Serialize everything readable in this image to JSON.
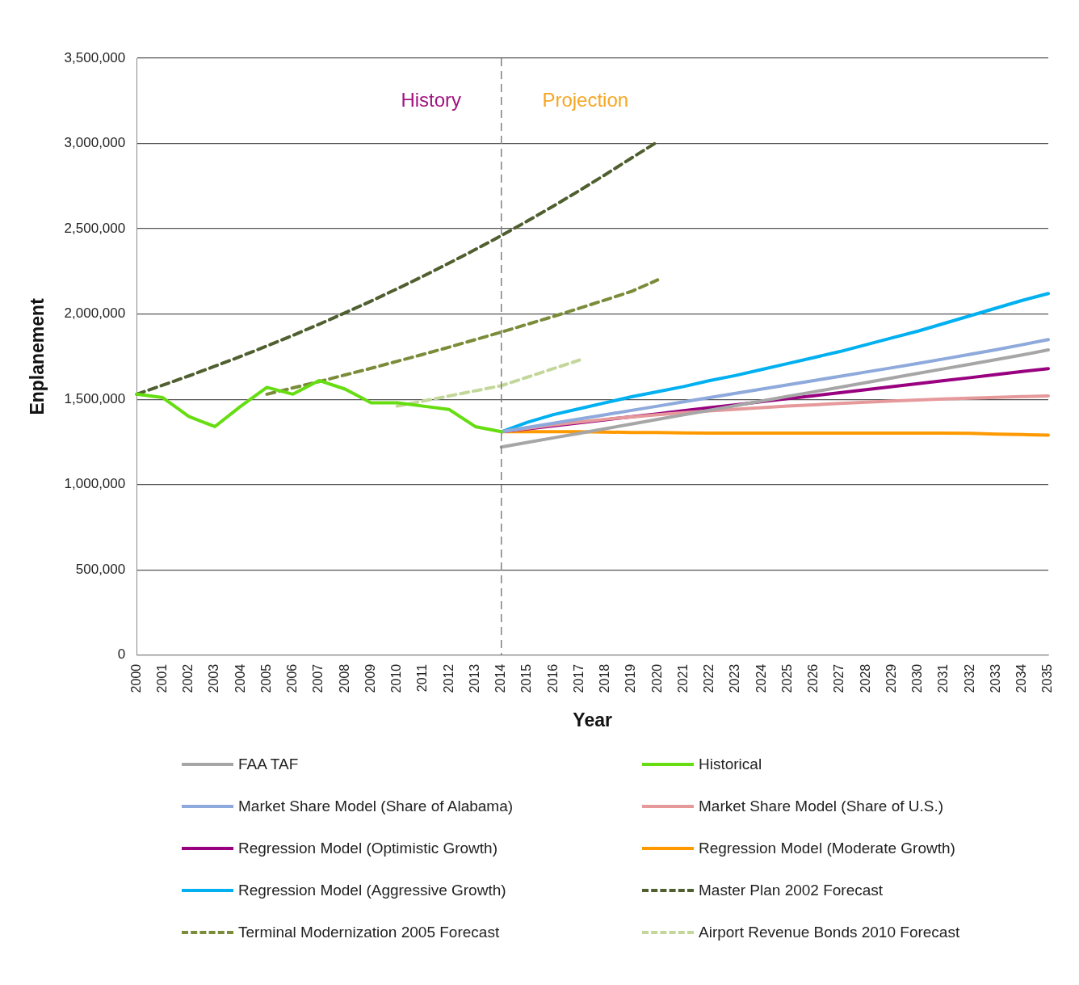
{
  "chart_data": {
    "type": "line",
    "xlabel": "Year",
    "ylabel": "Enplanement",
    "categories": [
      "2000",
      "2001",
      "2002",
      "2003",
      "2004",
      "2005",
      "2006",
      "2007",
      "2008",
      "2009",
      "2010",
      "2011",
      "2012",
      "2013",
      "2014",
      "2015",
      "2016",
      "2017",
      "2018",
      "2019",
      "2020",
      "2021",
      "2022",
      "2023",
      "2024",
      "2025",
      "2026",
      "2027",
      "2028",
      "2029",
      "2030",
      "2031",
      "2032",
      "2033",
      "2034",
      "2035"
    ],
    "ylim": [
      0,
      3500000
    ],
    "yticks": [
      0,
      {
        "value": 500000,
        "label": "500,000"
      },
      {
        "value": 1000000,
        "label": "1,000,000"
      },
      {
        "value": 1500000,
        "label": "1,500,000"
      },
      {
        "value": 2000000,
        "label": "2,000,000"
      },
      {
        "value": 2500000,
        "label": "2,500,000"
      },
      {
        "value": 3000000,
        "label": "3,000,000"
      },
      {
        "value": 3500000,
        "label": "3,500,000"
      }
    ],
    "grid": "y",
    "legend": "bottom",
    "marker": "none",
    "ref_lines": [
      {
        "axis": "x",
        "value": "2014",
        "color": "#808080",
        "line_style": "dashed"
      }
    ],
    "annotations": [
      "History",
      "Projection"
    ],
    "series": [
      {
        "name": "FAA TAF",
        "color": "#a6a6a6",
        "line_style": "solid",
        "values": [
          null,
          null,
          null,
          null,
          null,
          null,
          null,
          null,
          null,
          null,
          null,
          null,
          null,
          null,
          1220000,
          1247000,
          1274000,
          1301000,
          1328000,
          1355000,
          1382000,
          1409000,
          1436000,
          1463000,
          1490000,
          1517000,
          1544000,
          1571000,
          1598000,
          1625000,
          1652000,
          1679000,
          1706000,
          1733000,
          1760000,
          1790000
        ]
      },
      {
        "name": "Historical",
        "color": "#66dd11",
        "line_style": "solid",
        "values": [
          1530000,
          1510000,
          1400000,
          1340000,
          1460000,
          1570000,
          1530000,
          1610000,
          1560000,
          1480000,
          1480000,
          1460000,
          1440000,
          1340000,
          1310000,
          null,
          null,
          null,
          null,
          null,
          null,
          null,
          null,
          null,
          null,
          null,
          null,
          null,
          null,
          null,
          null,
          null,
          null,
          null,
          null,
          null
        ]
      },
      {
        "name": "Market Share Model (Share of Alabama)",
        "color": "#8ea9db",
        "line_style": "solid",
        "values": [
          null,
          null,
          null,
          null,
          null,
          null,
          null,
          null,
          null,
          null,
          null,
          null,
          null,
          null,
          1310000,
          1335000,
          1360000,
          1385000,
          1410000,
          1435000,
          1460000,
          1485000,
          1510000,
          1535000,
          1560000,
          1585000,
          1610000,
          1635000,
          1660000,
          1685000,
          1710000,
          1737000,
          1764000,
          1791000,
          1820000,
          1850000
        ]
      },
      {
        "name": "Market Share Model (Share of U.S.)",
        "color": "#e6999b",
        "line_style": "solid",
        "values": [
          null,
          null,
          null,
          null,
          null,
          null,
          null,
          null,
          null,
          null,
          null,
          null,
          null,
          null,
          1310000,
          1330000,
          1350000,
          1367000,
          1383000,
          1397000,
          1410000,
          1421000,
          1432000,
          1442000,
          1451000,
          1460000,
          1468000,
          1476000,
          1483000,
          1490000,
          1496000,
          1502000,
          1507000,
          1512000,
          1516000,
          1520000
        ]
      },
      {
        "name": "Regression Model (Optimistic Growth)",
        "color": "#990080",
        "line_style": "solid",
        "values": [
          null,
          null,
          null,
          null,
          null,
          null,
          null,
          null,
          null,
          null,
          null,
          null,
          null,
          null,
          1310000,
          1327000,
          1345000,
          1362000,
          1380000,
          1398000,
          1415000,
          1433000,
          1451000,
          1468000,
          1486000,
          1504000,
          1521000,
          1539000,
          1557000,
          1574000,
          1592000,
          1610000,
          1627000,
          1645000,
          1663000,
          1680000
        ]
      },
      {
        "name": "Regression Model (Moderate Growth)",
        "color": "#ff9900",
        "line_style": "solid",
        "values": [
          null,
          null,
          null,
          null,
          null,
          null,
          null,
          null,
          null,
          null,
          null,
          null,
          null,
          null,
          1310000,
          1310000,
          1310000,
          1310000,
          1308000,
          1306000,
          1305000,
          1303000,
          1302000,
          1302000,
          1302000,
          1302000,
          1302000,
          1302000,
          1302000,
          1302000,
          1302000,
          1302000,
          1301000,
          1296000,
          1293000,
          1290000
        ]
      },
      {
        "name": "Regression Model (Aggressive Growth)",
        "color": "#00b0f0",
        "line_style": "solid",
        "values": [
          null,
          null,
          null,
          null,
          null,
          null,
          null,
          null,
          null,
          null,
          null,
          null,
          null,
          null,
          1310000,
          1365000,
          1410000,
          1445000,
          1480000,
          1515000,
          1545000,
          1575000,
          1610000,
          1640000,
          1675000,
          1710000,
          1745000,
          1780000,
          1820000,
          1860000,
          1900000,
          1945000,
          1990000,
          2035000,
          2080000,
          2120000
        ]
      },
      {
        "name": "Master Plan 2002 Forecast",
        "color": "#4f5f2f",
        "line_style": "dashed",
        "values": [
          1530000,
          1583000,
          1637000,
          1694000,
          1752000,
          1813000,
          1875000,
          1940000,
          2007000,
          2076000,
          2148000,
          2222000,
          2299000,
          2378000,
          2460000,
          2545000,
          2633000,
          2724000,
          2818000,
          2915000,
          3010000,
          null,
          null,
          null,
          null,
          null,
          null,
          null,
          null,
          null,
          null,
          null,
          null,
          null,
          null,
          null
        ]
      },
      {
        "name": "Terminal Modernization 2005 Forecast",
        "color": "#7a8c3a",
        "line_style": "dashed",
        "values": [
          null,
          null,
          null,
          null,
          null,
          1530000,
          1567000,
          1604000,
          1643000,
          1682000,
          1723000,
          1764000,
          1806000,
          1850000,
          1894000,
          1940000,
          1986000,
          2034000,
          2083000,
          2133000,
          2200000,
          null,
          null,
          null,
          null,
          null,
          null,
          null,
          null,
          null,
          null,
          null,
          null,
          null,
          null,
          null
        ]
      },
      {
        "name": "Airport Revenue Bonds 2010 Forecast",
        "color": "#c4d79b",
        "line_style": "dashed",
        "values": [
          null,
          null,
          null,
          null,
          null,
          null,
          null,
          null,
          null,
          null,
          1460000,
          1490000,
          1520000,
          1550000,
          1580000,
          1630000,
          1680000,
          1730000,
          null,
          null,
          null,
          null,
          null,
          null,
          null,
          null,
          null,
          null,
          null,
          null,
          null,
          null,
          null,
          null,
          null,
          null
        ]
      }
    ]
  }
}
